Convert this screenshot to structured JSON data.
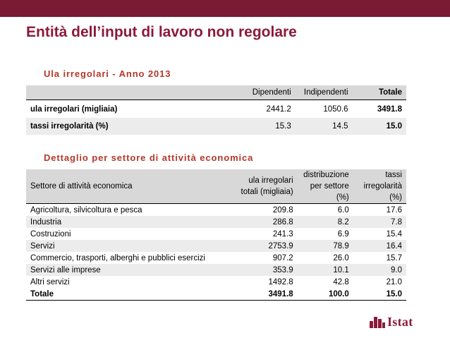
{
  "title": "Entità dell’input di lavoro non regolare",
  "section1": {
    "title": "Ula irregolari - Anno 2013",
    "columns": [
      "Dipendenti",
      "Indipendenti",
      "Totale"
    ],
    "rows": [
      {
        "label": "ula irregolari (migliaia)",
        "values": [
          "2441.2",
          "1050.6",
          "3491.8"
        ]
      },
      {
        "label": "tassi irregolarità (%)",
        "values": [
          "15.3",
          "14.5",
          "15.0"
        ]
      }
    ]
  },
  "section2": {
    "title": "Dettaglio per settore di attività economica",
    "header": {
      "col0": "Settore di attività economica",
      "col1": [
        "ula irregolari",
        "totali (migliaia)"
      ],
      "col2": [
        "distribuzione",
        "per settore",
        "(%)"
      ],
      "col3": [
        "tassi",
        "irregolarità",
        "(%)"
      ]
    },
    "rows": [
      {
        "label": "Agricoltura, silvicoltura e pesca",
        "values": [
          "209.8",
          "6.0",
          "17.6"
        ]
      },
      {
        "label": "Industria",
        "values": [
          "286.8",
          "8.2",
          "7.8"
        ]
      },
      {
        "label": "Costruzioni",
        "values": [
          "241.3",
          "6.9",
          "15.4"
        ]
      },
      {
        "label": "Servizi",
        "values": [
          "2753.9",
          "78.9",
          "16.4"
        ]
      },
      {
        "label": "Commercio, trasporti, alberghi e pubblici esercizi",
        "values": [
          "907.2",
          "26.0",
          "15.7"
        ]
      },
      {
        "label": "Servizi alle imprese",
        "values": [
          "353.9",
          "10.1",
          "9.0"
        ]
      },
      {
        "label": "Altri servizi",
        "values": [
          "1492.8",
          "42.8",
          "21.0"
        ]
      }
    ],
    "total": {
      "label": "Totale",
      "values": [
        "3491.8",
        "100.0",
        "15.0"
      ]
    }
  },
  "logo": {
    "text": "Istat",
    "icon": "istat-logo-icon"
  },
  "colors": {
    "brand": "#7a1a33",
    "title": "#8b1a3a",
    "section": "#b4372a",
    "header_bg": "#d8d8d8",
    "stripe_bg": "#ececec"
  }
}
